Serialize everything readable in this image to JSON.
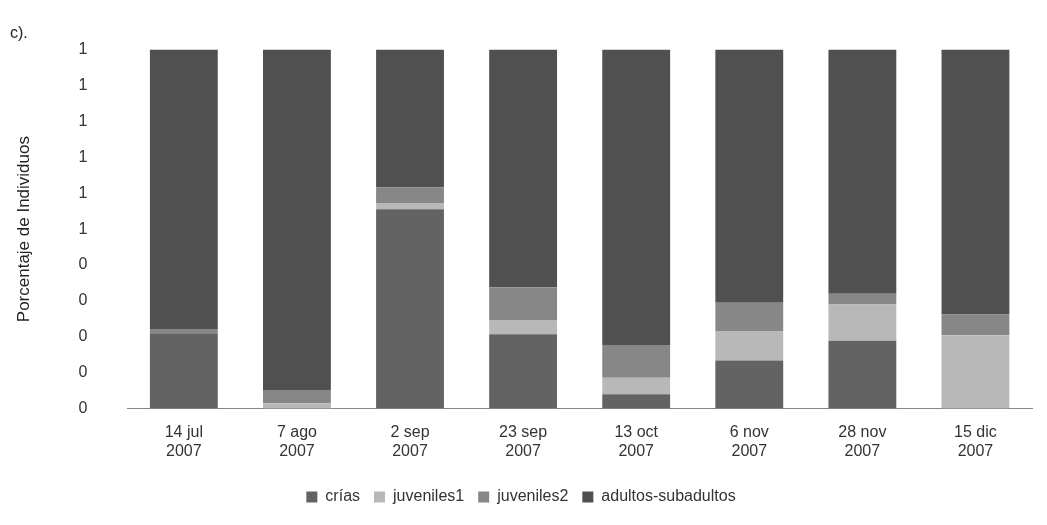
{
  "chart_data": {
    "type": "bar",
    "title": "c).",
    "ylabel": "Porcentaje de Individuos",
    "stacked": true,
    "legend": "bottom",
    "grid": false,
    "categories": [
      "14 jul 2007",
      "7 ago 2007",
      "2 sep 2007",
      "23 sep 2007",
      "13 oct 2007",
      "6 nov 2007",
      "28 nov 2007",
      "15 dic 2007"
    ],
    "ylim": [
      0,
      1
    ],
    "yticks": [
      {
        "value": 0,
        "label": "0"
      },
      {
        "value": 0.1,
        "label": "0"
      },
      {
        "value": 0.2,
        "label": "0"
      },
      {
        "value": 0.3,
        "label": "0"
      },
      {
        "value": 0.4,
        "label": "0"
      },
      {
        "value": 0.5,
        "label": "1"
      },
      {
        "value": 0.6,
        "label": "1"
      },
      {
        "value": 0.7,
        "label": "1"
      },
      {
        "value": 0.8,
        "label": "1"
      },
      {
        "value": 0.9,
        "label": "1"
      },
      {
        "value": 1,
        "label": "1"
      }
    ],
    "series": [
      {
        "name": "crías",
        "color": "#636363",
        "values": [
          0.21,
          0,
          0.555,
          0.207,
          0.04,
          0.134,
          0.189,
          0
        ]
      },
      {
        "name": "juveniles1",
        "color": "#b8b8b8",
        "values": [
          0,
          0.015,
          0.018,
          0.04,
          0.046,
          0.082,
          0.101,
          0.204
        ]
      },
      {
        "name": "juveniles2",
        "color": "#878787",
        "values": [
          0.012,
          0.037,
          0.043,
          0.091,
          0.091,
          0.079,
          0.03,
          0.058
        ]
      },
      {
        "name": "adultos-subadultos",
        "color": "#505050",
        "values": [
          0.778,
          0.948,
          0.384,
          0.662,
          0.823,
          0.705,
          0.68,
          0.738
        ]
      }
    ]
  }
}
